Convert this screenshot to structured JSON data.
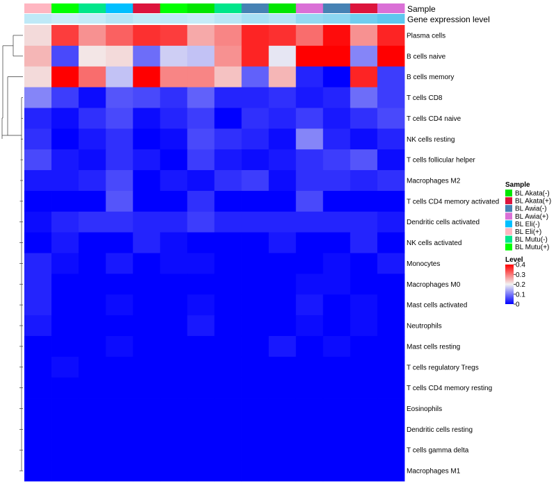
{
  "chart_data": {
    "type": "heatmap",
    "annotation_labels": {
      "sample": "Sample",
      "gene_expression": "Gene expression level"
    },
    "column_samples": [
      "BL Eli(+)",
      "BL Mutu(+)",
      "BL Mutu(-)",
      "BL Eli(-)",
      "BL Akata(+)",
      "BL Mutu(+)",
      "BL Akata(-)",
      "BL Mutu(-)",
      "BL Awia(-)",
      "BL Akata(-)",
      "BL Awia(+)",
      "BL Awia(-)",
      "BL Akata(+)",
      "BL Awia(+)"
    ],
    "gene_expression_colors": [
      "#bfe9f7",
      "#c9edf8",
      "#c4ebf8",
      "#b6e5f6",
      "#c2eaf7",
      "#bfe9f7",
      "#c6ecf8",
      "#b9e6f6",
      "#a8e0f4",
      "#b3e4f5",
      "#94d9f2",
      "#8cd6f1",
      "#70cdef",
      "#5ec7ee"
    ],
    "rows": [
      "Plasma cells",
      "B cells naive",
      "B cells memory",
      "T cells CD8",
      "T cells CD4 naive",
      "NK cells resting",
      "T cells follicular helper",
      "Macrophages M2",
      "T cells CD4 memory activated",
      "Dendritic cells activated",
      "NK cells activated",
      "Monocytes",
      "Macrophages M0",
      "Mast cells activated",
      "Neutrophils",
      "Mast cells resting",
      "T cells regulatory  Tregs",
      "T cells CD4 memory resting",
      "Eosinophils",
      "Dendritic cells resting",
      "T cells gamma delta",
      "Macrophages M1"
    ],
    "values": [
      [
        0.22,
        0.35,
        0.28,
        0.32,
        0.36,
        0.35,
        0.26,
        0.29,
        0.37,
        0.36,
        0.31,
        0.39,
        0.28,
        0.37
      ],
      [
        0.25,
        0.06,
        0.21,
        0.22,
        0.09,
        0.17,
        0.16,
        0.28,
        0.37,
        0.19,
        0.4,
        0.4,
        0.11,
        0.4
      ],
      [
        0.22,
        0.4,
        0.31,
        0.16,
        0.4,
        0.29,
        0.29,
        0.24,
        0.08,
        0.25,
        0.03,
        0.0,
        0.37,
        0.05
      ],
      [
        0.11,
        0.05,
        0.01,
        0.07,
        0.06,
        0.04,
        0.08,
        0.03,
        0.03,
        0.04,
        0.02,
        0.03,
        0.09,
        0.05
      ],
      [
        0.03,
        0.01,
        0.04,
        0.06,
        0.01,
        0.03,
        0.05,
        0.0,
        0.04,
        0.03,
        0.05,
        0.02,
        0.04,
        0.06
      ],
      [
        0.04,
        0.0,
        0.02,
        0.04,
        0.0,
        0.01,
        0.06,
        0.04,
        0.03,
        0.01,
        0.11,
        0.03,
        0.01,
        0.03
      ],
      [
        0.06,
        0.02,
        0.01,
        0.04,
        0.02,
        0.0,
        0.05,
        0.02,
        0.01,
        0.02,
        0.04,
        0.05,
        0.07,
        0.01
      ],
      [
        0.02,
        0.02,
        0.03,
        0.06,
        0.0,
        0.02,
        0.01,
        0.04,
        0.05,
        0.01,
        0.04,
        0.04,
        0.03,
        0.04
      ],
      [
        0.0,
        0.0,
        0.0,
        0.07,
        0.0,
        0.0,
        0.04,
        0.0,
        0.0,
        0.0,
        0.06,
        0.0,
        0.0,
        0.0
      ],
      [
        0.01,
        0.03,
        0.04,
        0.04,
        0.03,
        0.03,
        0.05,
        0.03,
        0.03,
        0.03,
        0.03,
        0.03,
        0.03,
        0.02
      ],
      [
        0.0,
        0.02,
        0.0,
        0.0,
        0.03,
        0.01,
        0.0,
        0.0,
        0.0,
        0.02,
        0.0,
        0.0,
        0.03,
        0.0
      ],
      [
        0.03,
        0.01,
        0.0,
        0.02,
        0.0,
        0.01,
        0.01,
        0.0,
        0.0,
        0.0,
        0.0,
        0.01,
        0.0,
        0.02
      ],
      [
        0.03,
        0.0,
        0.0,
        0.0,
        0.0,
        0.0,
        0.0,
        0.0,
        0.0,
        0.0,
        0.01,
        0.01,
        0.0,
        0.0
      ],
      [
        0.03,
        0.0,
        0.0,
        0.01,
        0.0,
        0.0,
        0.01,
        0.0,
        0.0,
        0.0,
        0.02,
        0.0,
        0.01,
        0.0
      ],
      [
        0.02,
        0.0,
        0.0,
        0.0,
        0.0,
        0.0,
        0.02,
        0.0,
        0.0,
        0.0,
        0.01,
        0.0,
        0.01,
        0.0
      ],
      [
        0.0,
        0.0,
        0.0,
        0.01,
        0.0,
        0.0,
        0.0,
        0.0,
        0.0,
        0.02,
        0.0,
        0.01,
        0.0,
        0.0
      ],
      [
        0.0,
        0.01,
        0.0,
        0.0,
        0.0,
        0.0,
        0.0,
        0.0,
        0.0,
        0.0,
        0.0,
        0.0,
        0.0,
        0.0
      ],
      [
        0.0,
        0.0,
        0.0,
        0.0,
        0.0,
        0.0,
        0.0,
        0.0,
        0.0,
        0.0,
        0.0,
        0.0,
        0.0,
        0.0
      ],
      [
        0.0,
        0.0,
        0.0,
        0.0,
        0.0,
        0.0,
        0.0,
        0.0,
        0.0,
        0.0,
        0.0,
        0.0,
        0.0,
        0.0
      ],
      [
        0.0,
        0.0,
        0.0,
        0.0,
        0.0,
        0.0,
        0.0,
        0.0,
        0.0,
        0.0,
        0.0,
        0.0,
        0.0,
        0.0
      ],
      [
        0.0,
        0.0,
        0.0,
        0.0,
        0.0,
        0.0,
        0.0,
        0.0,
        0.0,
        0.0,
        0.0,
        0.0,
        0.0,
        0.0
      ],
      [
        0.0,
        0.0,
        0.0,
        0.0,
        0.0,
        0.0,
        0.0,
        0.0,
        0.0,
        0.0,
        0.0,
        0.0,
        0.0,
        0.0
      ]
    ],
    "color_scale": {
      "min": 0,
      "max": 0.4,
      "low": "#0000ff",
      "mid": "#f2f2f2",
      "high": "#ff0000"
    },
    "legend_sample": {
      "title": "Sample",
      "items": [
        {
          "label": "BL Akata(-)",
          "color": "#00e600"
        },
        {
          "label": "BL Akata(+)",
          "color": "#dc143c"
        },
        {
          "label": "BL Awia(-)",
          "color": "#4682b4"
        },
        {
          "label": "BL Awia(+)",
          "color": "#da70d6"
        },
        {
          "label": "BL Eli(-)",
          "color": "#00bfff"
        },
        {
          "label": "BL Eli(+)",
          "color": "#ffb6c1"
        },
        {
          "label": "BL Mutu(-)",
          "color": "#00e68a"
        },
        {
          "label": "BL Mutu(+)",
          "color": "#00ff00"
        }
      ]
    },
    "legend_level": {
      "title": "Level",
      "ticks": [
        "0.4",
        "0.3",
        "0.2",
        "0.1",
        "0"
      ],
      "tick_values": [
        0.4,
        0.3,
        0.2,
        0.1,
        0
      ]
    },
    "dendrogram": "row clustering tree on the left side"
  }
}
